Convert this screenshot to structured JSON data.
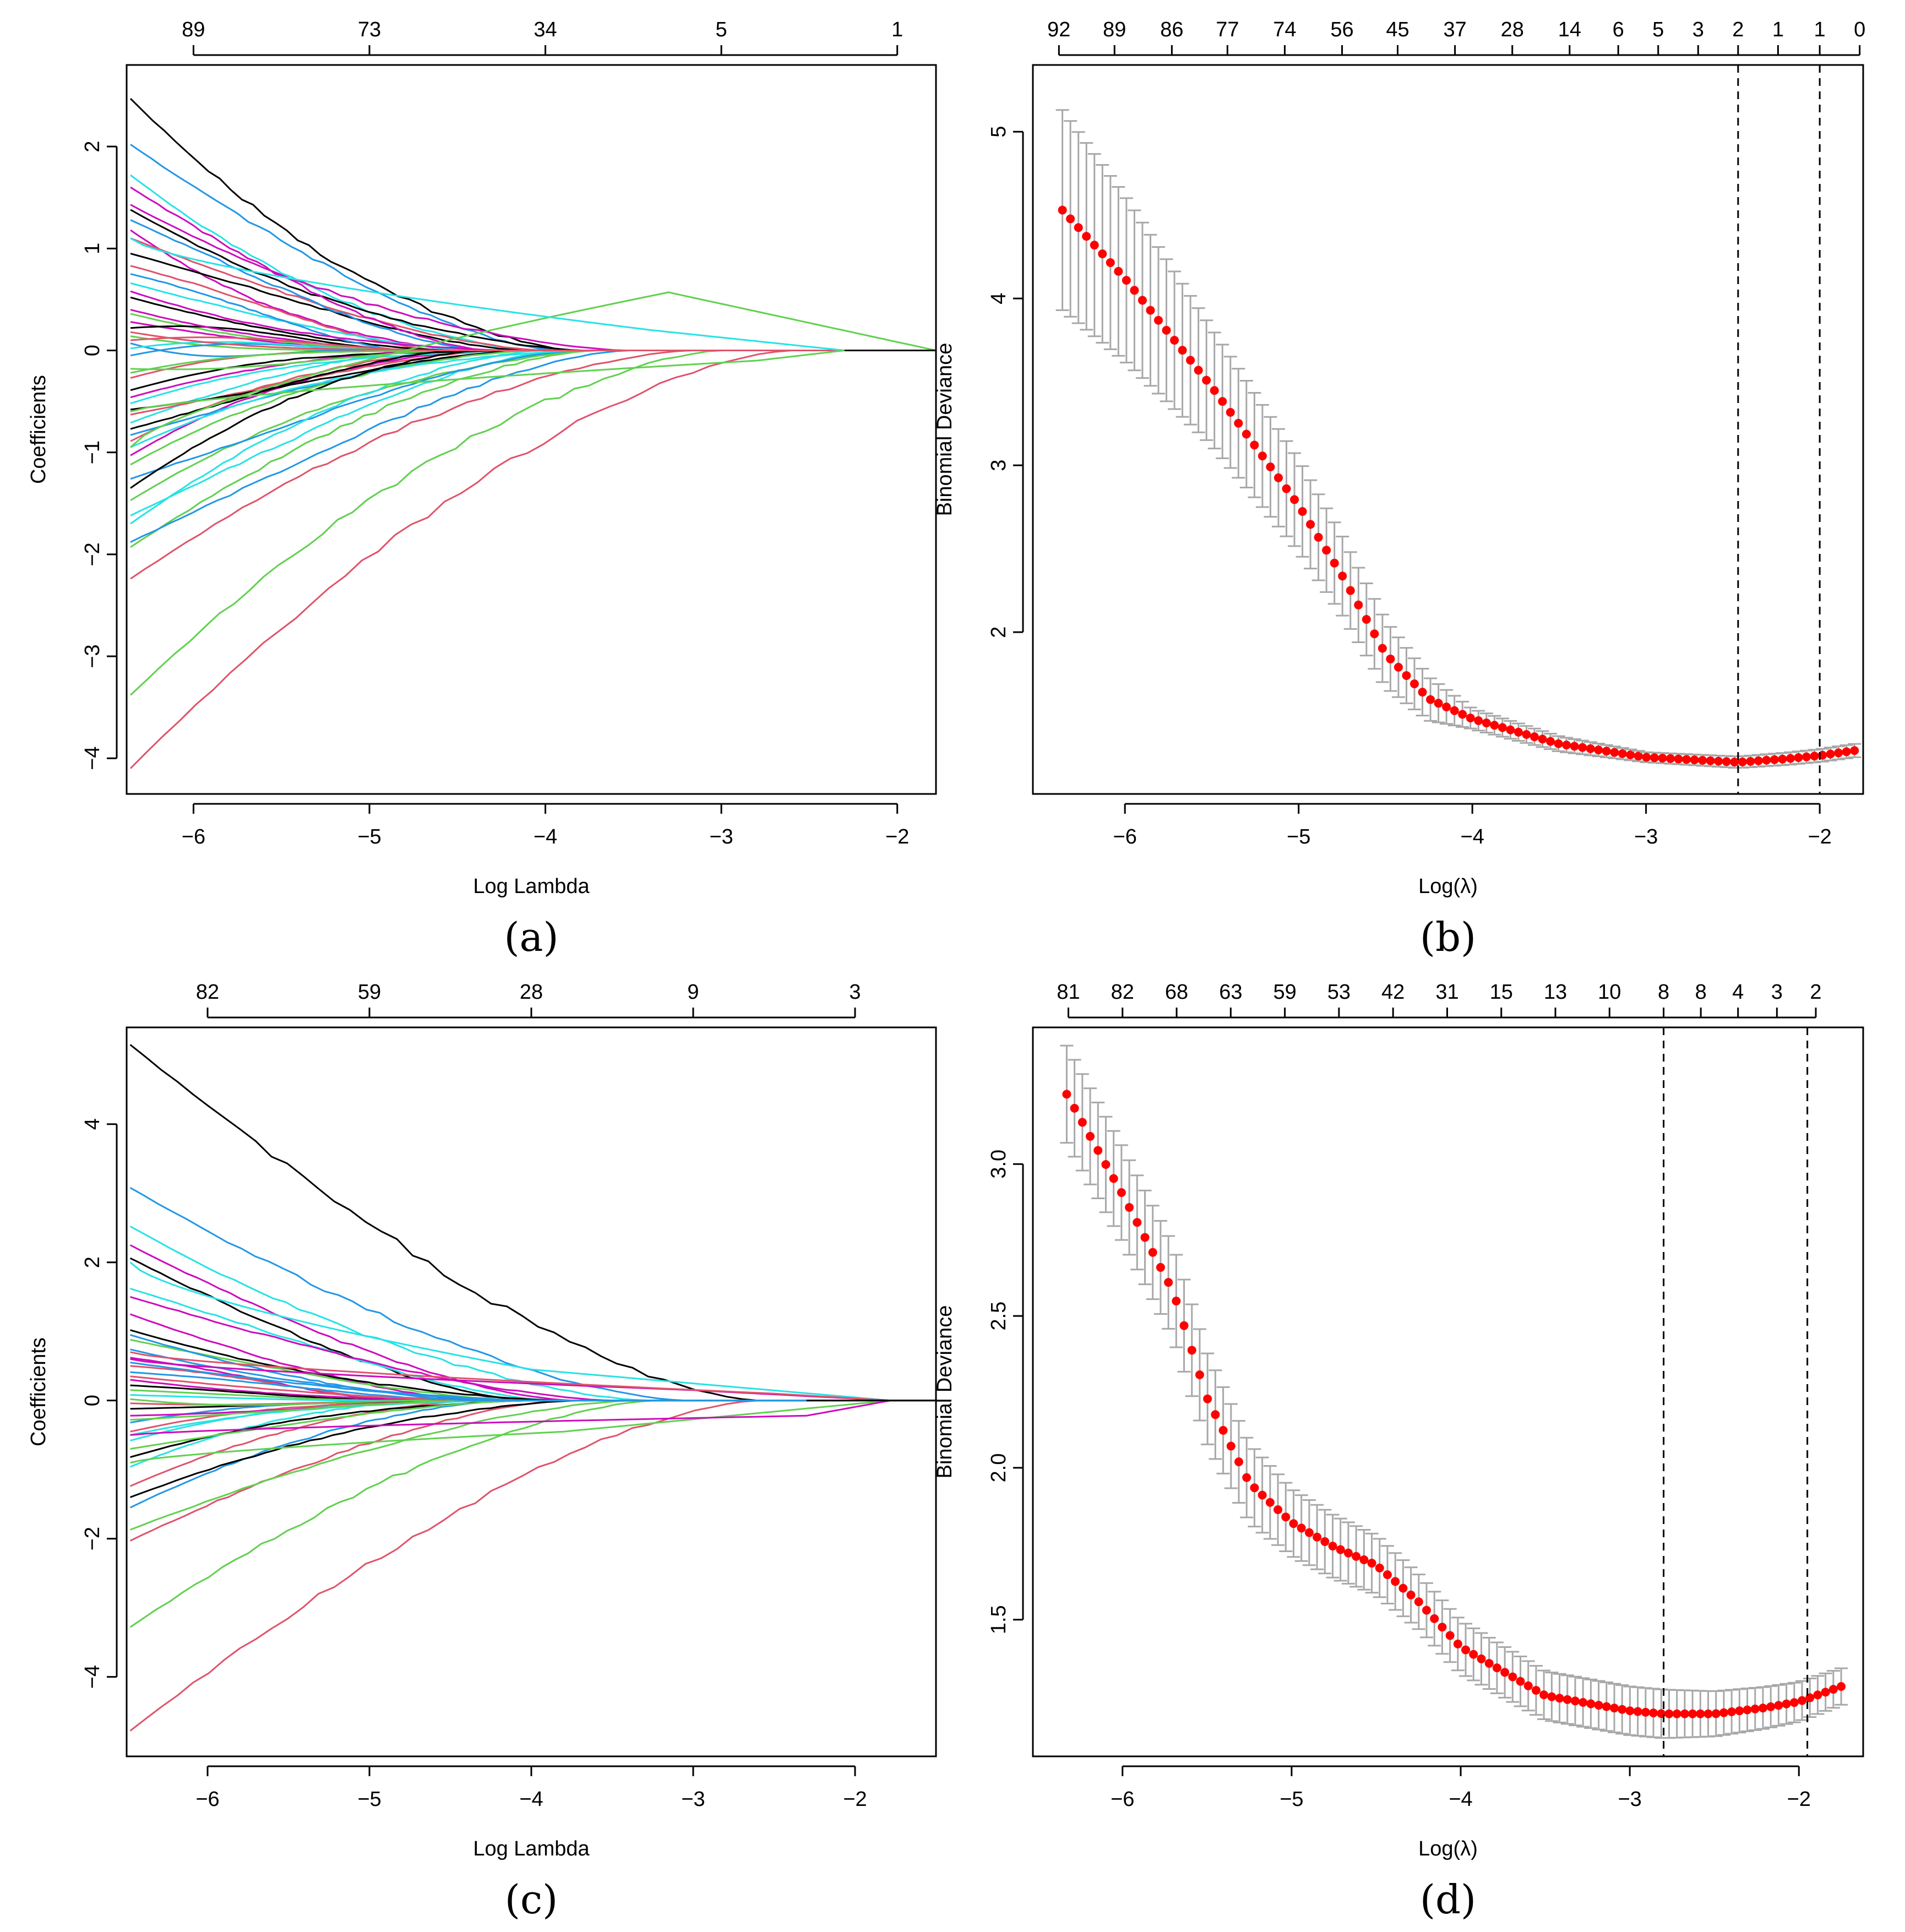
{
  "colors": {
    "palette": [
      "#000000",
      "#DF536B",
      "#61D04F",
      "#2297E6",
      "#28E2E5",
      "#CD0BBC"
    ],
    "deviance_point": "#FF0000",
    "error_bar": "#A8A8A8",
    "reference_line": "#000000"
  },
  "chart_data": [
    {
      "panel": "a",
      "type": "line",
      "caption": "(a)",
      "xlabel": "Log Lambda",
      "ylabel": "Coefficients",
      "xlim": [
        -6.38,
        -1.78
      ],
      "ylim": [
        -4.35,
        2.8
      ],
      "xticks": [
        -6,
        -5,
        -4,
        -3,
        -2
      ],
      "yticks": [
        -4,
        -3,
        -2,
        -1,
        0,
        1,
        2
      ],
      "top_axis": {
        "positions": [
          -6,
          -5,
          -4,
          -3,
          -2
        ],
        "labels": [
          "89",
          "73",
          "34",
          "5",
          "1"
        ]
      },
      "n_paths": 92,
      "path_starts": [
        2.47,
        -4.1,
        -3.38,
        2.02,
        1.72,
        1.43,
        1.38,
        -2.24,
        -1.93,
        -1.88,
        -1.62,
        1.18,
        0.95,
        0.83,
        -1.47,
        -1.26,
        0.66,
        -1.03,
        0.52,
        -0.89,
        0.36,
        -0.83,
        -0.71,
        0.28,
        0.22,
        -0.63,
        0.14,
        0.07,
        -0.52,
        -0.46,
        -0.39,
        -0.27,
        -0.18,
        -0.05,
        0.02,
        0.4,
        -0.58,
        1.1,
        -1.12,
        0.75,
        -0.95,
        1.6,
        -1.35,
        0.18,
        -0.22,
        1.28,
        -1.7,
        0.58,
        -0.77,
        0.1
      ],
      "persist_paths": [
        {
          "start": -0.95,
          "peak": 0.57,
          "peak_at": -3.3,
          "end_at": -1.78,
          "color_index": 2
        },
        {
          "start": 1.1,
          "peak": 0.2,
          "peak_at": -3.4,
          "end_at": -2.3,
          "color_index": 4
        },
        {
          "start": -0.6,
          "peak": -0.1,
          "peak_at": -2.8,
          "end_at": -2.3,
          "color_index": 2
        }
      ],
      "vlines": []
    },
    {
      "panel": "b",
      "type": "scatter",
      "caption": "(b)",
      "xlabel": "Log(λ)",
      "ylabel": "Binomial Deviance",
      "xlim": [
        -6.53,
        -1.75
      ],
      "ylim": [
        1.03,
        5.4
      ],
      "xticks": [
        -6,
        -5,
        -4,
        -3,
        -2
      ],
      "yticks": [
        2,
        3,
        4,
        5
      ],
      "top_axis": {
        "positions": [
          -6.38,
          -6.06,
          -5.73,
          -5.41,
          -5.08,
          -4.75,
          -4.43,
          -4.1,
          -3.77,
          -3.44,
          -3.16,
          -2.93,
          -2.7,
          -2.47,
          -2.24,
          -2.0,
          -1.77
        ],
        "labels": [
          "92",
          "89",
          "86",
          "77",
          "74",
          "56",
          "45",
          "37",
          "28",
          "14",
          "6",
          "5",
          "3",
          "2",
          "1",
          "1",
          "0"
        ]
      },
      "x_range": [
        -6.36,
        -1.8
      ],
      "n_points": 100,
      "curve_knots": [
        [
          -6.36,
          4.53
        ],
        [
          -6.0,
          4.12
        ],
        [
          -5.5,
          3.47
        ],
        [
          -5.0,
          2.76
        ],
        [
          -4.75,
          2.34
        ],
        [
          -4.5,
          1.87
        ],
        [
          -4.25,
          1.6
        ],
        [
          -4.0,
          1.48
        ],
        [
          -3.5,
          1.33
        ],
        [
          -3.0,
          1.25
        ],
        [
          -2.47,
          1.22
        ],
        [
          -2.2,
          1.24
        ],
        [
          -2.0,
          1.26
        ],
        [
          -1.8,
          1.29
        ]
      ],
      "error_knots": [
        [
          -6.36,
          0.6
        ],
        [
          -5.5,
          0.35
        ],
        [
          -4.5,
          0.2
        ],
        [
          -4.0,
          0.06
        ],
        [
          -3.0,
          0.03
        ],
        [
          -1.8,
          0.04
        ]
      ],
      "vlines": [
        -2.47,
        -2.0
      ]
    },
    {
      "panel": "c",
      "type": "line",
      "caption": "(c)",
      "xlabel": "Log Lambda",
      "ylabel": "Coefficients",
      "xlim": [
        -6.5,
        -1.5
      ],
      "ylim": [
        -5.15,
        5.4
      ],
      "xticks": [
        -6,
        -5,
        -4,
        -3,
        -2
      ],
      "yticks": [
        -4,
        -2,
        0,
        2,
        4
      ],
      "top_axis": {
        "positions": [
          -6,
          -5,
          -4,
          -3,
          -2
        ],
        "labels": [
          "82",
          "59",
          "28",
          "9",
          "3"
        ]
      },
      "n_paths": 82,
      "path_starts": [
        5.15,
        -4.78,
        -3.28,
        3.08,
        2.52,
        2.25,
        2.06,
        -2.03,
        -1.87,
        -1.55,
        1.62,
        1.25,
        1.02,
        -1.24,
        0.88,
        0.74,
        -0.96,
        0.62,
        -0.82,
        0.5,
        -0.7,
        0.41,
        -0.58,
        0.3,
        0.22,
        -0.45,
        0.15,
        -0.32,
        0.08,
        -0.22,
        -0.12,
        -0.04,
        0.02,
        0.55,
        -0.5,
        1.5,
        -1.4,
        0.35,
        -0.28,
        0.95
      ],
      "persist_paths": [
        {
          "start": 2.0,
          "peak": 0.45,
          "peak_at": -4.0,
          "end_at": -1.78,
          "color_index": 4
        },
        {
          "start": -0.9,
          "peak": -0.45,
          "peak_at": -3.8,
          "end_at": -1.78,
          "color_index": 2
        },
        {
          "start": 0.6,
          "peak": 0.15,
          "peak_at": -3.0,
          "end_at": -1.78,
          "color_index": 5
        },
        {
          "start": -0.5,
          "peak": -0.22,
          "peak_at": -2.3,
          "end_at": -1.78,
          "color_index": 5
        },
        {
          "start": 0.7,
          "peak": 0.1,
          "peak_at": -2.5,
          "end_at": -1.78,
          "color_index": 1
        }
      ],
      "vlines": []
    },
    {
      "panel": "d",
      "type": "scatter",
      "caption": "(d)",
      "xlabel": "Log(λ)",
      "ylabel": "Binomial Deviance",
      "xlim": [
        -6.53,
        -1.62
      ],
      "ylim": [
        1.05,
        3.45
      ],
      "xticks": [
        -6,
        -5,
        -4,
        -3,
        -2
      ],
      "yticks": [
        1.5,
        2.0,
        2.5,
        3.0
      ],
      "top_axis": {
        "positions": [
          -6.32,
          -6.0,
          -5.68,
          -5.36,
          -5.04,
          -4.72,
          -4.4,
          -4.08,
          -3.76,
          -3.44,
          -3.12,
          -2.8,
          -2.58,
          -2.36,
          -2.13,
          -1.9
        ],
        "labels": [
          "81",
          "82",
          "68",
          "63",
          "59",
          "53",
          "42",
          "31",
          "15",
          "13",
          "10",
          "8",
          "8",
          "4",
          "3",
          "2"
        ]
      },
      "x_range": [
        -6.33,
        -1.75
      ],
      "n_points": 100,
      "curve_knots": [
        [
          -6.33,
          3.23
        ],
        [
          -6.0,
          2.9
        ],
        [
          -5.7,
          2.58
        ],
        [
          -5.5,
          2.23
        ],
        [
          -5.25,
          1.95
        ],
        [
          -5.0,
          1.82
        ],
        [
          -4.75,
          1.74
        ],
        [
          -4.5,
          1.68
        ],
        [
          -4.25,
          1.56
        ],
        [
          -4.0,
          1.41
        ],
        [
          -3.5,
          1.25
        ],
        [
          -3.0,
          1.2
        ],
        [
          -2.8,
          1.19
        ],
        [
          -2.5,
          1.19
        ],
        [
          -2.2,
          1.21
        ],
        [
          -2.0,
          1.23
        ],
        [
          -1.75,
          1.28
        ]
      ],
      "error_knots": [
        [
          -6.33,
          0.16
        ],
        [
          -5.5,
          0.15
        ],
        [
          -5.0,
          0.11
        ],
        [
          -4.25,
          0.09
        ],
        [
          -3.5,
          0.08
        ],
        [
          -2.8,
          0.08
        ],
        [
          -1.75,
          0.06
        ]
      ],
      "vlines": [
        -2.8,
        -1.95
      ]
    }
  ]
}
